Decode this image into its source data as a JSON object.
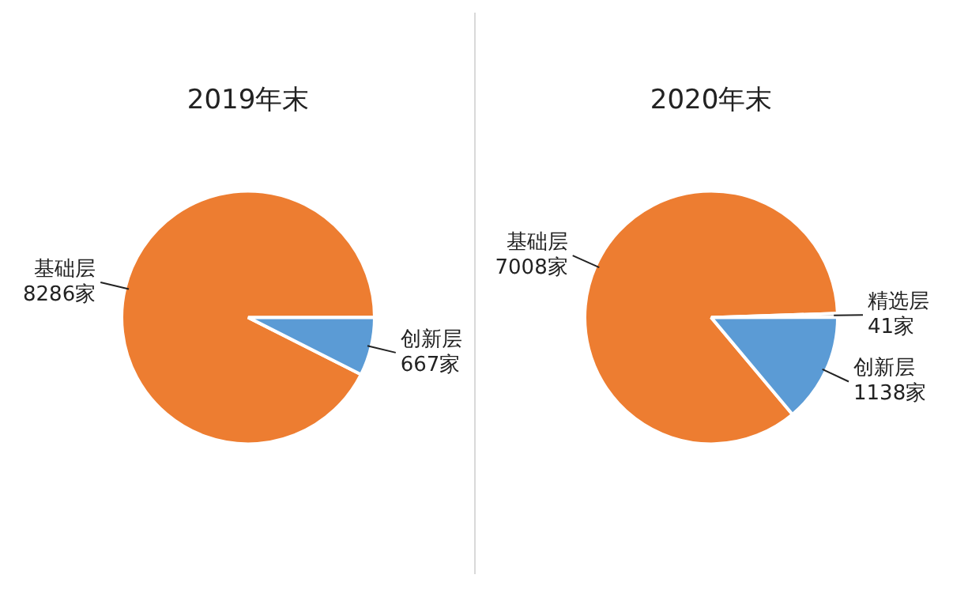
{
  "chart_data": [
    {
      "type": "pie",
      "title": "2019年末",
      "categories": [
        "基础层",
        "创新层"
      ],
      "values": [
        8286,
        667
      ],
      "colors": [
        "#ed7d31",
        "#5b9bd5"
      ],
      "value_labels": [
        "8286家",
        "667家"
      ]
    },
    {
      "type": "pie",
      "title": "2020年末",
      "categories": [
        "基础层",
        "精选层",
        "创新层"
      ],
      "values": [
        7008,
        41,
        1138
      ],
      "colors": [
        "#ed7d31",
        "#a5a5a5",
        "#5b9bd5"
      ],
      "value_labels": [
        "7008家",
        "41家",
        "1138家"
      ]
    }
  ]
}
